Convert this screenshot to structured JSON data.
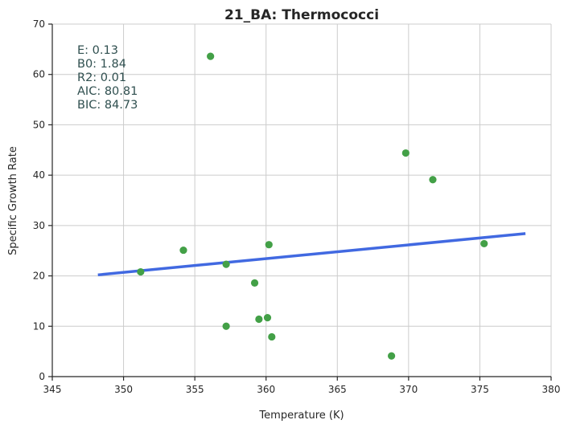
{
  "chart_data": {
    "type": "scatter",
    "title": "21_BA: Thermococci",
    "xlabel": "Temperature (K)",
    "ylabel": "Specific Growth Rate",
    "xlim": [
      345,
      380
    ],
    "ylim": [
      0,
      70
    ],
    "xticks": [
      345,
      350,
      355,
      360,
      365,
      370,
      375,
      380
    ],
    "yticks": [
      0,
      10,
      20,
      30,
      40,
      50,
      60,
      70
    ],
    "grid": true,
    "colors": {
      "points": "#43a047",
      "fit": "#4169e1",
      "annotation": "#2f4f4f"
    },
    "points": [
      {
        "x": 351.2,
        "y": 20.8
      },
      {
        "x": 354.2,
        "y": 25.1
      },
      {
        "x": 356.1,
        "y": 63.6
      },
      {
        "x": 357.2,
        "y": 22.3
      },
      {
        "x": 357.2,
        "y": 10.0
      },
      {
        "x": 359.2,
        "y": 18.6
      },
      {
        "x": 359.5,
        "y": 11.4
      },
      {
        "x": 360.1,
        "y": 11.7
      },
      {
        "x": 360.2,
        "y": 26.2
      },
      {
        "x": 360.4,
        "y": 7.9
      },
      {
        "x": 368.8,
        "y": 4.1
      },
      {
        "x": 369.8,
        "y": 44.4
      },
      {
        "x": 371.7,
        "y": 39.1
      },
      {
        "x": 375.3,
        "y": 26.4
      }
    ],
    "fit_line": [
      {
        "x": 348.2,
        "y": 20.2
      },
      {
        "x": 378.2,
        "y": 28.4
      }
    ],
    "annotations": [
      "E:  0.13",
      "B0:  1.84",
      "R2:  0.01",
      "AIC: 80.81",
      "BIC: 84.73"
    ]
  }
}
